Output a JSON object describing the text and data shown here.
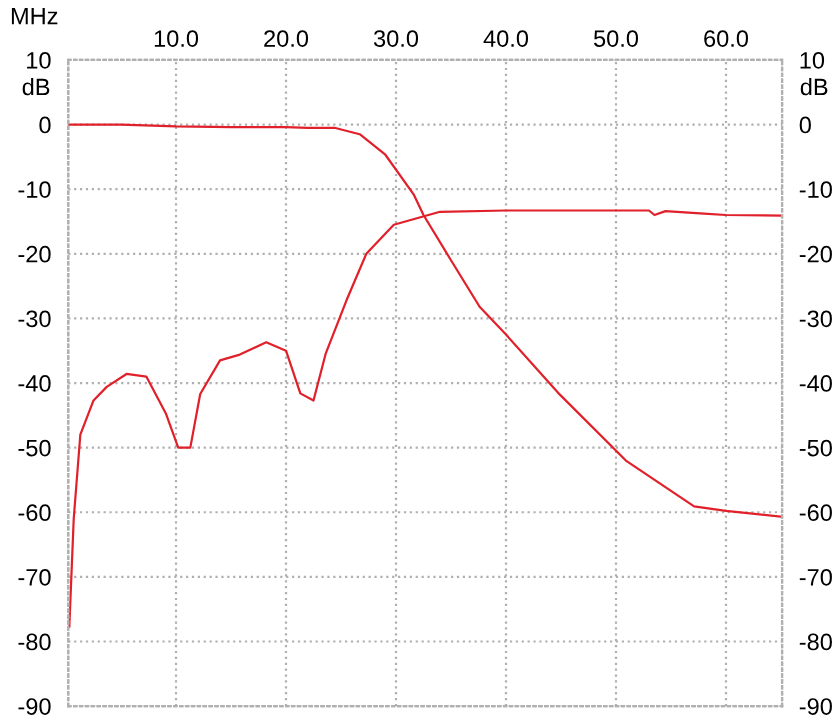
{
  "chart_data": {
    "type": "line",
    "xlabel": "MHz",
    "ylabel": "dB",
    "y2label": "dB",
    "xlim": [
      0.2,
      65.1
    ],
    "xticks": [
      {
        "value": 10,
        "label": "10.0"
      },
      {
        "value": 20,
        "label": "20.0"
      },
      {
        "value": 30,
        "label": "30.0"
      },
      {
        "value": 40,
        "label": "40.0"
      },
      {
        "value": 50,
        "label": "50.0"
      },
      {
        "value": 60,
        "label": "60.0"
      }
    ],
    "ylim": [
      -90,
      10
    ],
    "yticks": [
      -90,
      -80,
      -70,
      -60,
      -50,
      -40,
      -30,
      -20,
      -10,
      0,
      10
    ],
    "y2lim": [
      -90,
      10
    ],
    "y2ticks": [
      -90,
      -80,
      -70,
      -60,
      -50,
      -40,
      -30,
      -20,
      -10,
      0,
      10
    ],
    "grid": true,
    "line_style": "solid",
    "marker": "none",
    "series": [
      {
        "color": "#e0202a",
        "x": [
          0.2,
          5,
          10,
          15,
          20,
          22,
          24.4,
          26.7,
          29,
          31.6,
          32.5,
          35,
          37.6,
          40,
          44.9,
          50.9,
          57.1,
          60,
          65.1
        ],
        "values": [
          0,
          0,
          -0.3,
          -0.4,
          -0.4,
          -0.5,
          -0.5,
          -1.5,
          -4.6,
          -10.8,
          -14,
          -21,
          -28.2,
          -32.5,
          -41.8,
          -52,
          -59.1,
          -59.8,
          -60.7
        ]
      },
      {
        "color": "#e0202a",
        "x": [
          0.3,
          0.7,
          1.3,
          2.5,
          3.7,
          5.5,
          7.3,
          9.1,
          10.2,
          11.3,
          12.2,
          14,
          15.8,
          18.2,
          20,
          21.3,
          22.5,
          23.6,
          25.5,
          27.3,
          29.8,
          34,
          40,
          53,
          53.5,
          54.5,
          58,
          60,
          65.1
        ],
        "values": [
          -77.7,
          -61,
          -48,
          -42.7,
          -40.6,
          -38.6,
          -39,
          -44.8,
          -50,
          -50,
          -41.7,
          -36.5,
          -35.6,
          -33.7,
          -35,
          -41.6,
          -42.7,
          -35.5,
          -27.2,
          -20,
          -15.5,
          -13.5,
          -13.3,
          -13.3,
          -14,
          -13.4,
          -13.8,
          -14,
          -14.1
        ]
      }
    ]
  }
}
